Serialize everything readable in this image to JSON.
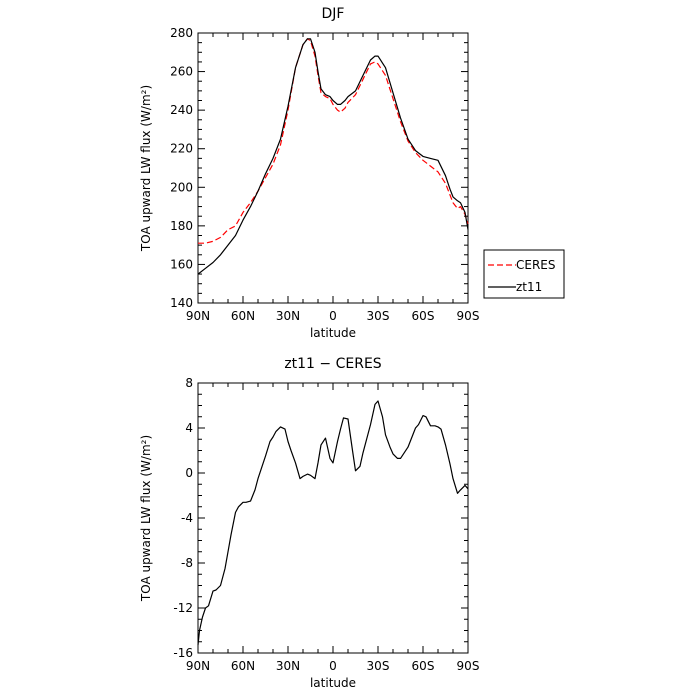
{
  "chart_data": [
    {
      "type": "line",
      "title": "DJF",
      "xlabel": "latitude",
      "ylabel": "TOA upward LW flux (W/m²)",
      "ylim": [
        140,
        280
      ],
      "xlim": [
        90,
        -90
      ],
      "xtick_values": [
        90,
        60,
        30,
        0,
        -30,
        -60,
        -90
      ],
      "xtick_labels": [
        "90N",
        "60N",
        "30N",
        "0",
        "30S",
        "60S",
        "90S"
      ],
      "yticks": [
        140,
        160,
        180,
        200,
        220,
        240,
        260,
        280
      ],
      "legend": "right",
      "legend_entries": [
        "CERES",
        "zt11"
      ],
      "series": [
        {
          "name": "CERES",
          "color": "#ff0000",
          "dash": "dashed",
          "x": [
            90,
            85,
            80,
            75,
            70,
            65,
            60,
            55,
            50,
            45,
            40,
            35,
            30,
            25,
            20,
            17,
            15,
            12,
            10,
            8,
            5,
            2,
            0,
            -3,
            -5,
            -8,
            -10,
            -15,
            -20,
            -25,
            -28,
            -30,
            -35,
            -40,
            -45,
            -50,
            -55,
            -60,
            -65,
            -70,
            -75,
            -78,
            -80,
            -83,
            -85,
            -88,
            -90
          ],
          "y": [
            171,
            171,
            172,
            174,
            178,
            180,
            187,
            192,
            198,
            205,
            212,
            222,
            240,
            262,
            274,
            277,
            276,
            268,
            258,
            249,
            247,
            246,
            243,
            240,
            239,
            241,
            244,
            248,
            256,
            264,
            265,
            264,
            258,
            246,
            234,
            224,
            218,
            214,
            211,
            208,
            202,
            196,
            192,
            189,
            190,
            186,
            181
          ]
        },
        {
          "name": "zt11",
          "color": "#000000",
          "dash": "solid",
          "x": [
            90,
            85,
            80,
            75,
            70,
            65,
            60,
            55,
            50,
            45,
            40,
            35,
            30,
            25,
            20,
            17,
            15,
            12,
            10,
            8,
            5,
            2,
            0,
            -3,
            -5,
            -8,
            -10,
            -15,
            -20,
            -25,
            -28,
            -30,
            -35,
            -40,
            -45,
            -50,
            -55,
            -60,
            -65,
            -70,
            -75,
            -78,
            -80,
            -83,
            -85,
            -88,
            -90
          ],
          "y": [
            155,
            158,
            161,
            165,
            170,
            175,
            183,
            190,
            198,
            207,
            215,
            225,
            242,
            262,
            274,
            277,
            277,
            270,
            260,
            251,
            248,
            247,
            245,
            243,
            243,
            245,
            247,
            250,
            258,
            266,
            268,
            268,
            262,
            249,
            236,
            225,
            219,
            216,
            215,
            214,
            206,
            199,
            195,
            193,
            192,
            187,
            178
          ]
        }
      ]
    },
    {
      "type": "line",
      "title": "zt11 − CERES",
      "xlabel": "latitude",
      "ylabel": "TOA upward LW flux (W/m²)",
      "ylim": [
        -16,
        8
      ],
      "xlim": [
        90,
        -90
      ],
      "xtick_values": [
        90,
        60,
        30,
        0,
        -30,
        -60,
        -90
      ],
      "xtick_labels": [
        "90N",
        "60N",
        "30N",
        "0",
        "30S",
        "60S",
        "90S"
      ],
      "yticks": [
        -16,
        -12,
        -8,
        -4,
        0,
        4,
        8
      ],
      "series": [
        {
          "color": "#000000",
          "dash": "solid",
          "x": [
            90,
            89,
            87,
            85,
            83,
            80,
            78,
            75,
            72,
            70,
            68,
            65,
            63,
            60,
            58,
            55,
            52,
            50,
            45,
            42,
            40,
            38,
            35,
            32,
            30,
            28,
            25,
            22,
            20,
            17,
            15,
            12,
            10,
            8,
            5,
            2,
            0,
            -3,
            -5,
            -7,
            -10,
            -13,
            -15,
            -18,
            -20,
            -25,
            -28,
            -30,
            -33,
            -35,
            -38,
            -40,
            -43,
            -45,
            -50,
            -55,
            -57,
            -60,
            -62,
            -65,
            -68,
            -70,
            -72,
            -75,
            -78,
            -80,
            -83,
            -85,
            -88,
            -90
          ],
          "y": [
            -15.3,
            -14,
            -12.8,
            -12,
            -11.8,
            -10.5,
            -10.4,
            -10,
            -8.5,
            -7,
            -5.5,
            -3.5,
            -3,
            -2.6,
            -2.6,
            -2.5,
            -1.5,
            -0.5,
            1.5,
            2.8,
            3.2,
            3.7,
            4.1,
            3.9,
            2.8,
            2,
            0.9,
            -0.5,
            -0.3,
            -0.1,
            -0.2,
            -0.5,
            0.9,
            2.5,
            3.1,
            1.3,
            0.9,
            2.8,
            3.9,
            4.9,
            4.8,
            2,
            0.2,
            0.6,
            1.8,
            4.3,
            6.1,
            6.4,
            5,
            3.4,
            2.3,
            1.7,
            1.3,
            1.3,
            2.3,
            4,
            4.3,
            5.1,
            5,
            4.2,
            4.2,
            4.1,
            3.9,
            2.5,
            0.8,
            -0.5,
            -1.8,
            -1.5,
            -1.1,
            -1.4
          ]
        }
      ]
    }
  ]
}
